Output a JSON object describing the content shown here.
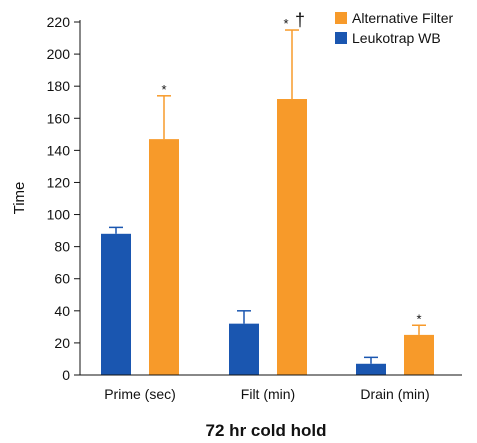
{
  "chart_data": {
    "type": "bar",
    "title": "",
    "xlabel": "72 hr cold hold",
    "ylabel": "Time",
    "ylim": [
      0,
      220
    ],
    "yticks": [
      0,
      20,
      40,
      60,
      80,
      100,
      120,
      140,
      160,
      180,
      200,
      220
    ],
    "categories": [
      "Prime (sec)",
      "Filt (min)",
      "Drain (min)"
    ],
    "series": [
      {
        "name": "Leukotrap WB",
        "color": "#1a56b0",
        "values": [
          88,
          32,
          7
        ],
        "error_upper": [
          92,
          40,
          11
        ],
        "annotations": [
          "",
          "",
          ""
        ]
      },
      {
        "name": "Alternative Filter",
        "color": "#f79a2a",
        "values": [
          147,
          172,
          25
        ],
        "error_upper": [
          174,
          215,
          31
        ],
        "annotations": [
          "*",
          "* †",
          "*"
        ]
      }
    ],
    "legend": {
      "position": "top-right",
      "order": [
        "Alternative Filter",
        "Leukotrap WB"
      ]
    },
    "grid": false
  }
}
